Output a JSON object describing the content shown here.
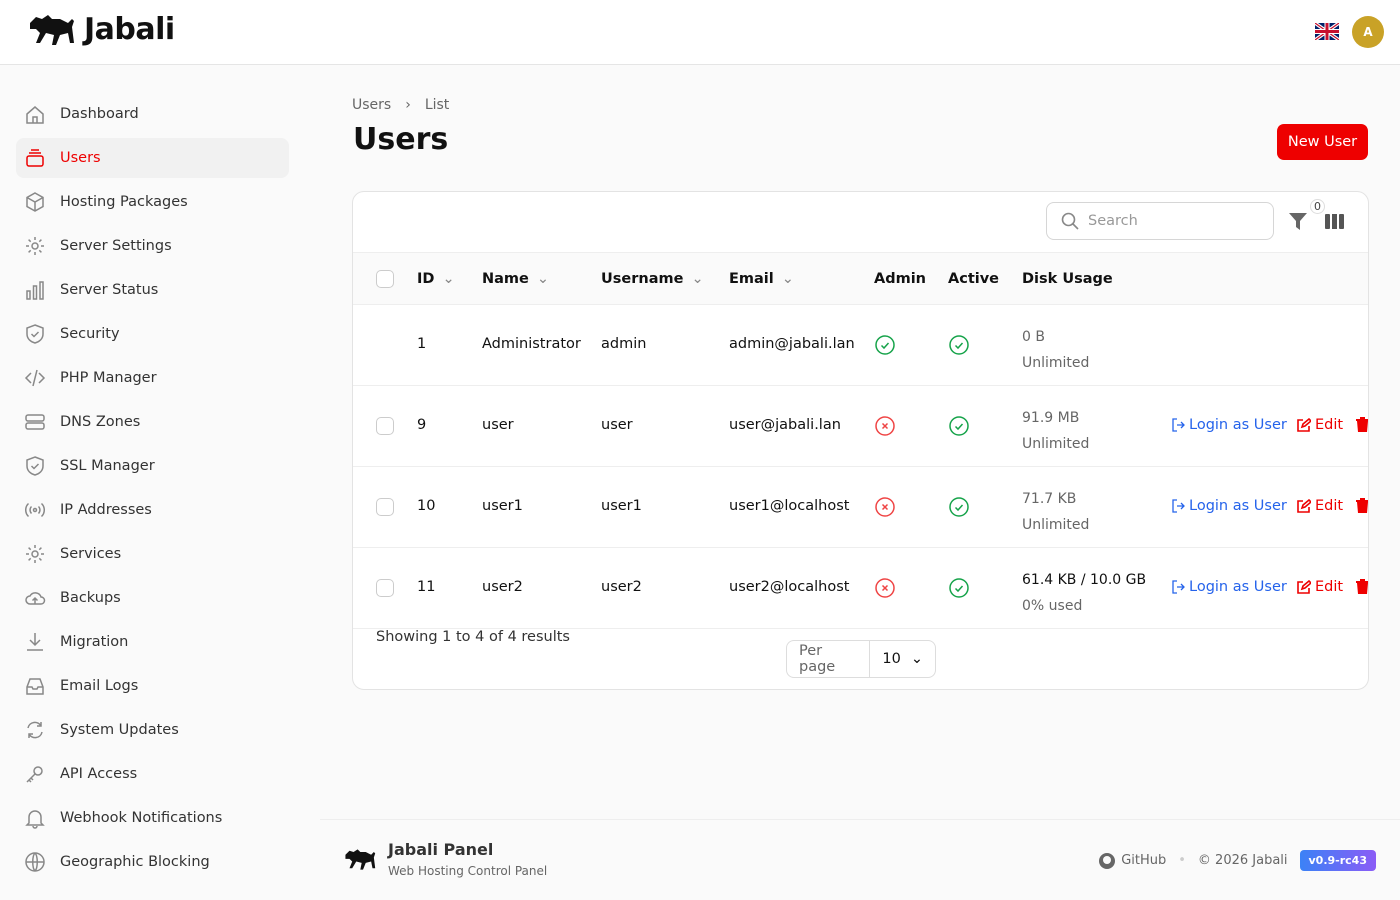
{
  "app": {
    "name": "Jabali",
    "avatar_initial": "A",
    "language_flag": "uk-flag-icon"
  },
  "sidebar": {
    "items": [
      {
        "label": "Dashboard",
        "icon": "home-icon"
      },
      {
        "label": "Users",
        "icon": "users-icon",
        "active": true
      },
      {
        "label": "Hosting Packages",
        "icon": "cube-icon"
      },
      {
        "label": "Server Settings",
        "icon": "gear-icon"
      },
      {
        "label": "Server Status",
        "icon": "chart-bar-icon"
      },
      {
        "label": "Security",
        "icon": "shield-icon"
      },
      {
        "label": "PHP Manager",
        "icon": "code-icon"
      },
      {
        "label": "DNS Zones",
        "icon": "server-icon"
      },
      {
        "label": "SSL Manager",
        "icon": "shield-check-icon"
      },
      {
        "label": "IP Addresses",
        "icon": "signal-icon"
      },
      {
        "label": "Services",
        "icon": "gear-icon"
      },
      {
        "label": "Backups",
        "icon": "cloud-upload-icon"
      },
      {
        "label": "Migration",
        "icon": "download-icon"
      },
      {
        "label": "Email Logs",
        "icon": "inbox-icon"
      },
      {
        "label": "System Updates",
        "icon": "refresh-icon"
      },
      {
        "label": "API Access",
        "icon": "key-icon"
      },
      {
        "label": "Webhook Notifications",
        "icon": "bell-icon"
      },
      {
        "label": "Geographic Blocking",
        "icon": "globe-icon"
      }
    ]
  },
  "breadcrumb": [
    "Users",
    "List"
  ],
  "page_title": "Users",
  "new_user_label": "New User",
  "table": {
    "search_placeholder": "Search",
    "filter_count": "0",
    "columns": [
      "ID",
      "Name",
      "Username",
      "Email",
      "Admin",
      "Active",
      "Disk Usage"
    ],
    "rows": [
      {
        "id": "1",
        "name": "Administrator",
        "username": "admin",
        "email": "admin@jabali.lan",
        "admin": true,
        "active": true,
        "disk": "0 B",
        "quota": "Unlimited",
        "selectable": false,
        "actions": false
      },
      {
        "id": "9",
        "name": "user",
        "username": "user",
        "email": "user@jabali.lan",
        "admin": false,
        "active": true,
        "disk": "91.9 MB",
        "quota": "Unlimited",
        "selectable": true,
        "actions": true
      },
      {
        "id": "10",
        "name": "user1",
        "username": "user1",
        "email": "user1@localhost",
        "admin": false,
        "active": true,
        "disk": "71.7 KB",
        "quota": "Unlimited",
        "selectable": true,
        "actions": true
      },
      {
        "id": "11",
        "name": "user2",
        "username": "user2",
        "email": "user2@localhost",
        "admin": false,
        "active": true,
        "disk": "61.4 KB / 10.0 GB",
        "quota": "0% used",
        "selectable": true,
        "actions": true
      }
    ],
    "actions": {
      "login": "Login as User",
      "edit": "Edit"
    },
    "summary": "Showing 1 to 4 of 4 results",
    "per_page_label": "Per page",
    "per_page_value": "10"
  },
  "footer": {
    "brand": "Jabali Panel",
    "subtitle": "Web Hosting Control Panel",
    "github": "GitHub",
    "copyright": "© 2026 Jabali",
    "version": "v0.9-rc43"
  },
  "colors": {
    "accent": "#ee0000",
    "link": "#2563eb",
    "success": "#16a34a",
    "danger": "#ef4444"
  }
}
